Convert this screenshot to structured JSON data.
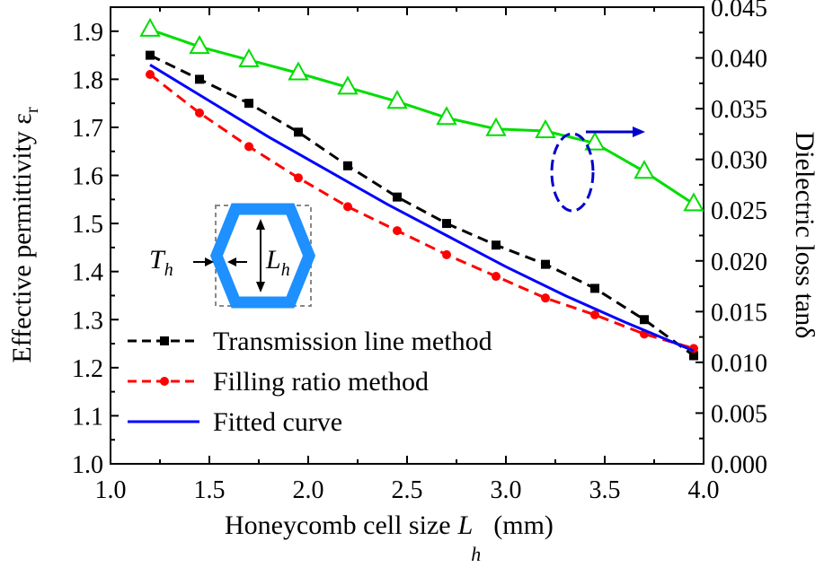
{
  "chart_data": {
    "type": "line",
    "x": [
      1.2,
      1.45,
      1.7,
      1.95,
      2.2,
      2.45,
      2.7,
      2.95,
      3.2,
      3.45,
      3.7,
      3.95
    ],
    "xlim": [
      1.0,
      4.0
    ],
    "ylim": [
      1.0,
      1.95
    ],
    "y2lim": [
      0.0,
      0.045
    ],
    "xticks": [
      "1.0",
      "1.5",
      "2.0",
      "2.5",
      "3.0",
      "3.5",
      "4.0"
    ],
    "yticks": [
      "1.0",
      "1.1",
      "1.2",
      "1.3",
      "1.4",
      "1.5",
      "1.6",
      "1.7",
      "1.8",
      "1.9"
    ],
    "y2ticks": [
      "0.000",
      "0.005",
      "0.010",
      "0.015",
      "0.020",
      "0.025",
      "0.030",
      "0.035",
      "0.040",
      "0.045"
    ],
    "xlabel": "Honeycomb cell size",
    "xlabel_var": "L",
    "xlabel_sub": "h",
    "xlabel_unit": "(mm)",
    "ylabel": "Effective permittivity ε",
    "ylabel_sub": "r",
    "y2label": "Dielectric loss tanδ",
    "series": [
      {
        "name": "Transmission line method",
        "axis": "left",
        "color": "#000000",
        "marker": "square",
        "dash": true,
        "values": [
          1.85,
          1.8,
          1.75,
          1.69,
          1.62,
          1.555,
          1.5,
          1.455,
          1.415,
          1.365,
          1.3,
          1.225
        ]
      },
      {
        "name": "Filling ratio method",
        "axis": "left",
        "color": "#ff0000",
        "marker": "circle",
        "dash": true,
        "values": [
          1.81,
          1.73,
          1.66,
          1.595,
          1.535,
          1.485,
          1.435,
          1.39,
          1.345,
          1.31,
          1.27,
          1.24
        ]
      },
      {
        "name": "Fitted curve",
        "axis": "left",
        "color": "#0000ff",
        "marker": "none",
        "dash": false,
        "x": [
          1.2,
          1.5,
          1.8,
          2.1,
          2.4,
          2.7,
          3.0,
          3.3,
          3.6,
          3.95
        ],
        "values": [
          1.83,
          1.755,
          1.68,
          1.61,
          1.54,
          1.475,
          1.41,
          1.35,
          1.295,
          1.235
        ]
      },
      {
        "name": "Dielectric loss",
        "axis": "right",
        "color": "#00dd00",
        "marker": "triangle",
        "dash": false,
        "values": [
          0.0428,
          0.0411,
          0.0398,
          0.0385,
          0.0371,
          0.0357,
          0.0341,
          0.033,
          0.0328,
          0.0316,
          0.0288,
          0.0256
        ]
      }
    ],
    "legend": [
      "Transmission line method",
      "Filling ratio method",
      "Fitted curve"
    ],
    "inset": {
      "label_T": "T",
      "label_L": "L",
      "sub": "h"
    }
  }
}
